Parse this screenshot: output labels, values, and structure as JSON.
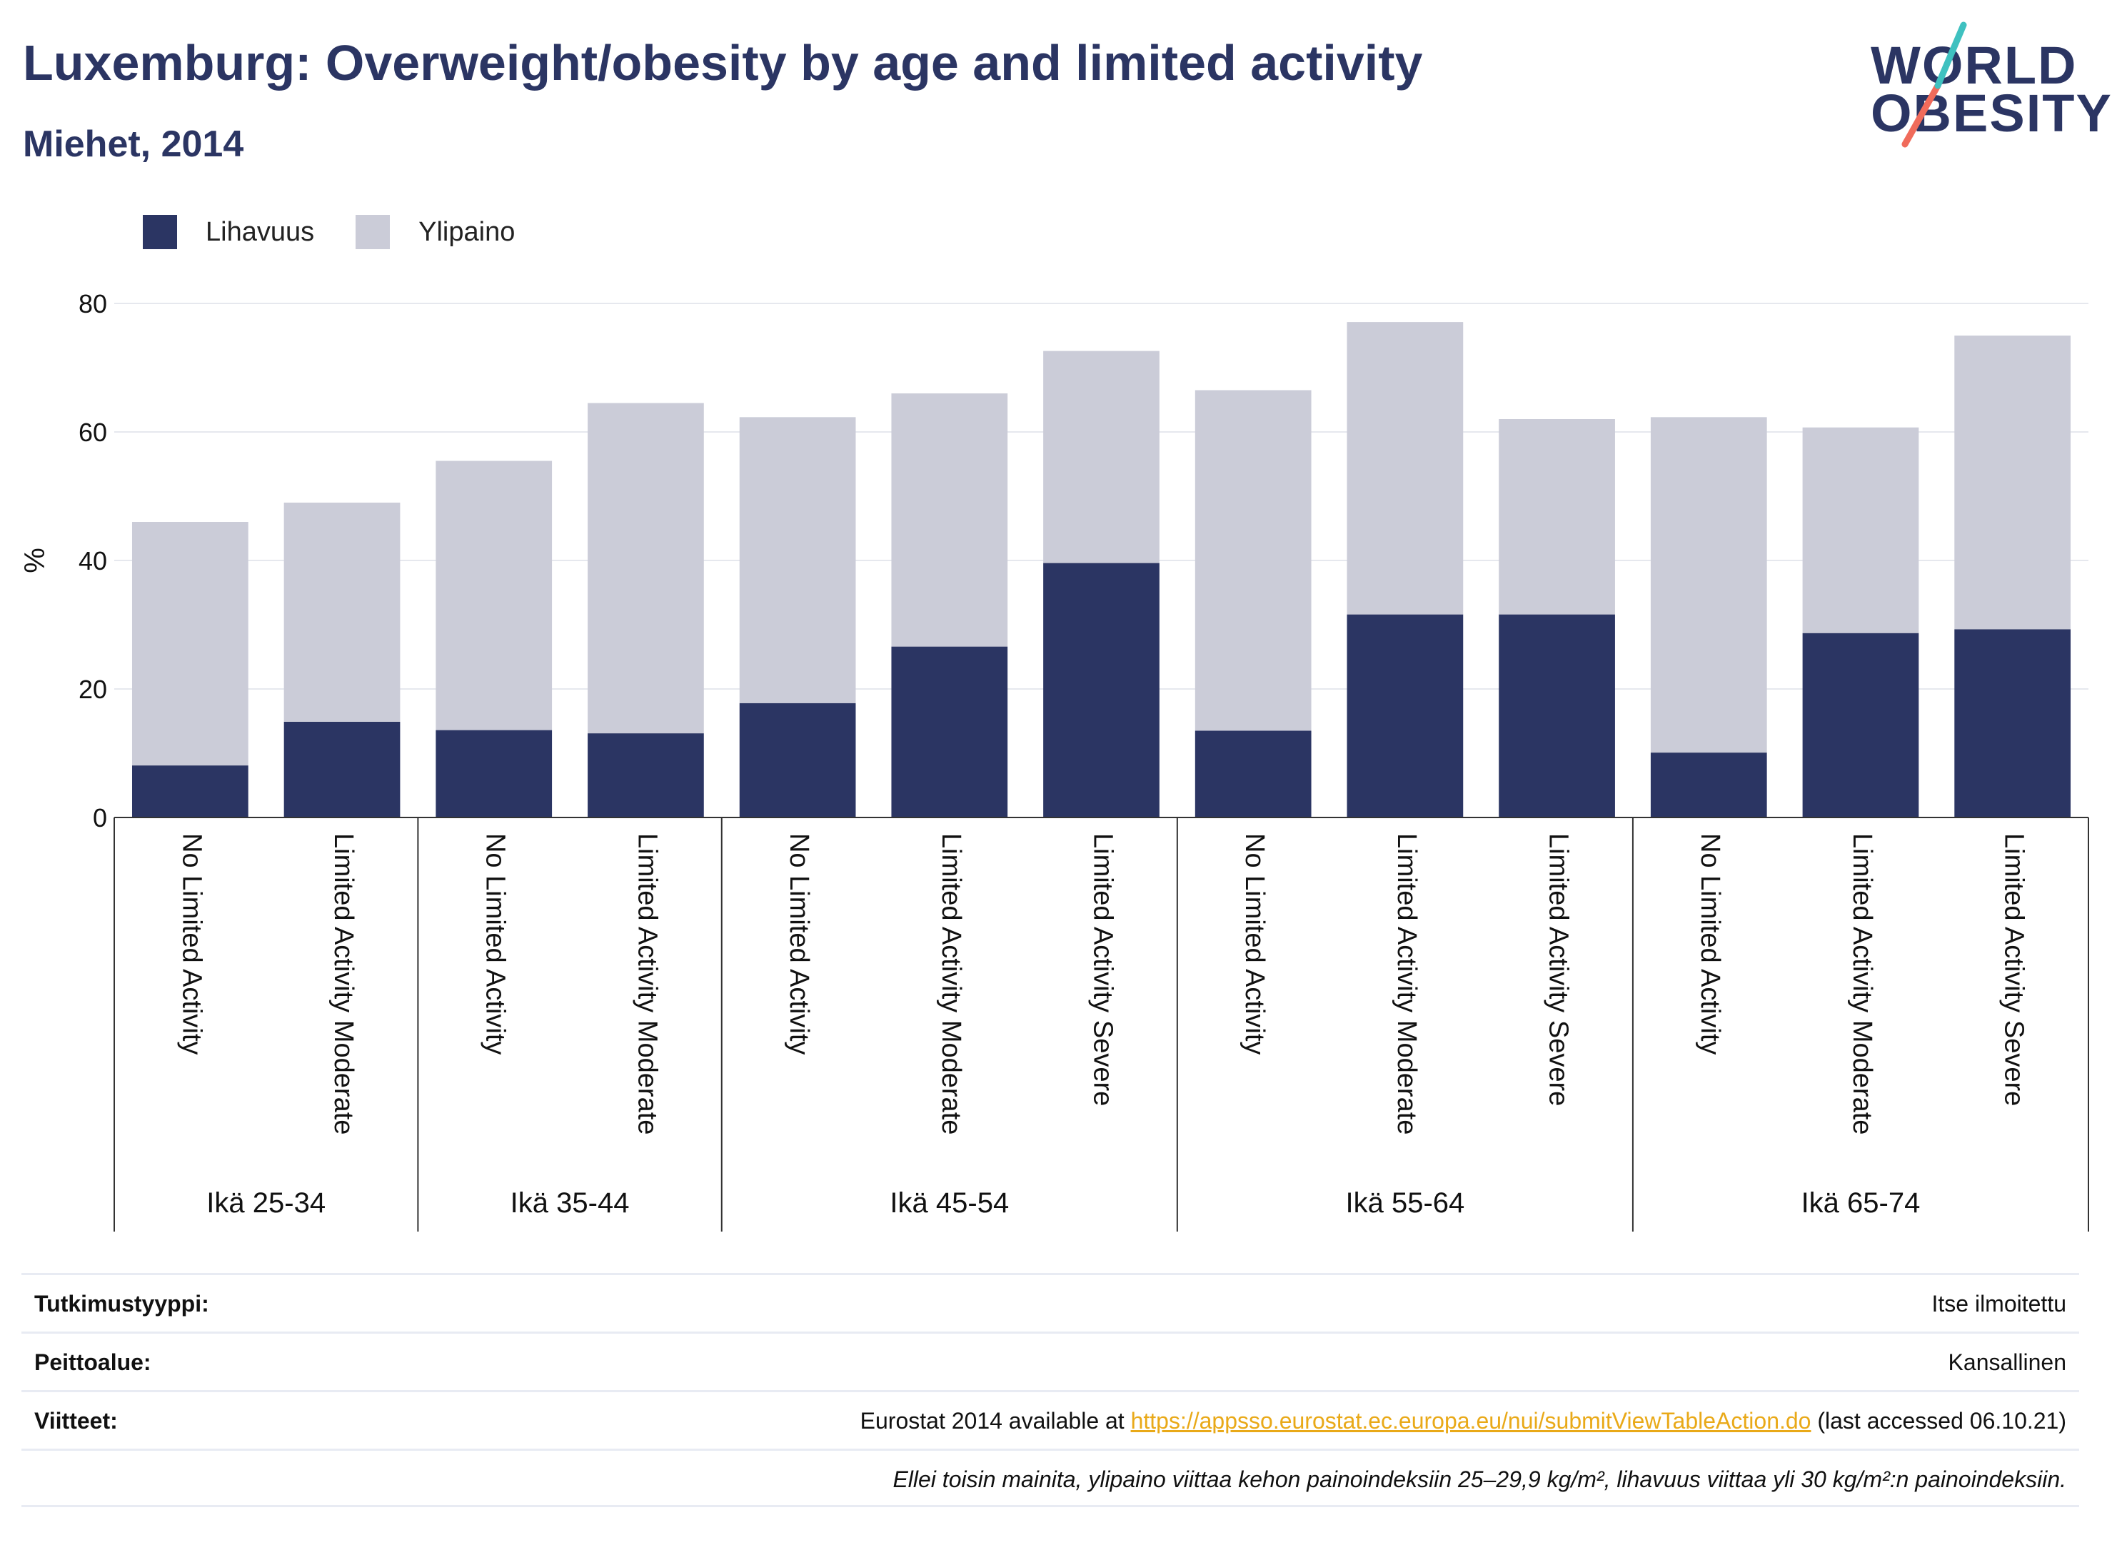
{
  "header": {
    "title": "Luxemburg: Overweight/obesity by age and limited activity",
    "subtitle": "Miehet, 2014",
    "logo_line1": "WORLD",
    "logo_line2": "OBESITY"
  },
  "colors": {
    "obesity": "#2b3563",
    "overweight": "#cbccd8",
    "logo_teal": "#3fc1c0",
    "logo_coral": "#f06b5b",
    "link": "#e9a918"
  },
  "legend": [
    {
      "label": "Lihavuus",
      "color": "#2b3563"
    },
    {
      "label": "Ylipaino",
      "color": "#cbccd8"
    }
  ],
  "chart_data": {
    "type": "bar",
    "stacked": true,
    "ylabel": "%",
    "ylim": [
      0,
      80
    ],
    "yticks": [
      0,
      20,
      40,
      60,
      80
    ],
    "grid": true,
    "legend_position": "top-left",
    "groups": [
      {
        "label": "Ikä 25-34",
        "categories": [
          "No Limited Activity",
          "Limited Activity Moderate"
        ]
      },
      {
        "label": "Ikä 35-44",
        "categories": [
          "No Limited Activity",
          "Limited Activity Moderate"
        ]
      },
      {
        "label": "Ikä 45-54",
        "categories": [
          "No Limited Activity",
          "Limited Activity Moderate",
          "Limited Activity Severe"
        ]
      },
      {
        "label": "Ikä 55-64",
        "categories": [
          "No Limited Activity",
          "Limited Activity Moderate",
          "Limited Activity Severe"
        ]
      },
      {
        "label": "Ikä 65-74",
        "categories": [
          "No Limited Activity",
          "Limited Activity Moderate",
          "Limited Activity Severe"
        ]
      }
    ],
    "series": [
      {
        "name": "Lihavuus",
        "values": [
          8.1,
          14.9,
          13.6,
          13.1,
          17.8,
          26.6,
          39.6,
          13.5,
          31.6,
          31.6,
          10.1,
          28.7,
          29.3
        ]
      },
      {
        "name": "Ylipaino",
        "values": [
          37.9,
          34.1,
          41.9,
          51.4,
          44.5,
          39.4,
          33.0,
          53.0,
          45.5,
          30.4,
          52.2,
          32.0,
          45.7
        ]
      }
    ]
  },
  "meta": {
    "rows": [
      {
        "label": "Tutkimustyyppi:",
        "value": "Itse ilmoitettu"
      },
      {
        "label": "Peittoalue:",
        "value": "Kansallinen"
      }
    ],
    "ref_label": "Viitteet:",
    "ref_prefix": "Eurostat 2014 available at ",
    "ref_link": "https://appsso.eurostat.ec.europa.eu/nui/submitViewTableAction.do",
    "ref_suffix": " (last accessed 06.10.21)",
    "note": "Ellei toisin mainita, ylipaino viittaa kehon painoindeksiin 25–29,9 kg/m², lihavuus viittaa yli 30 kg/m²:n painoindeksiin."
  }
}
